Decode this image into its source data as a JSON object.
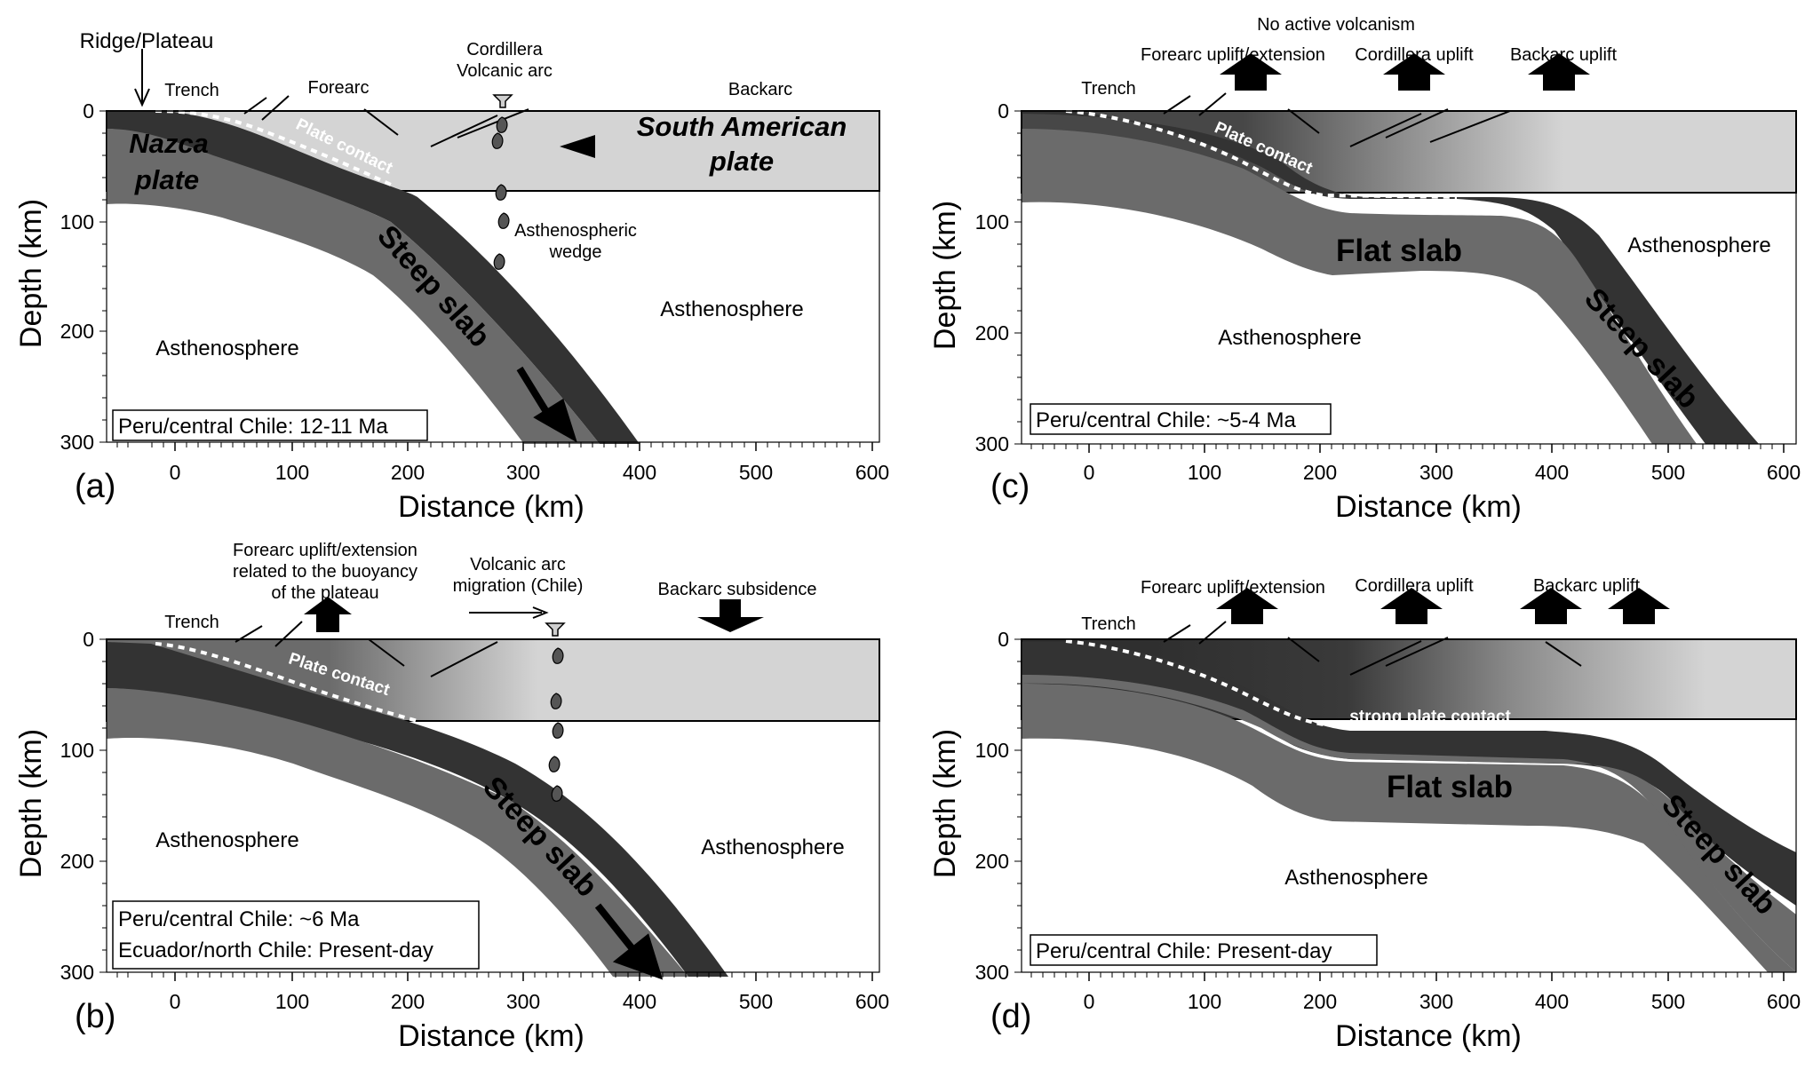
{
  "figure": {
    "axis_x_label": "Distance (km)",
    "axis_y_label": "Depth (km)",
    "x_ticks": [
      "0",
      "100",
      "200",
      "300",
      "400",
      "500",
      "600"
    ],
    "y_ticks": [
      "0",
      "100",
      "200",
      "300"
    ],
    "colors": {
      "slab_core": "#6b6b6b",
      "slab_top": "#333333",
      "continental_plate": "#d4d4d4",
      "background": "#ffffff"
    }
  },
  "panels": {
    "a": {
      "letter": "(a)",
      "caption": "Peru/central Chile: 12-11 Ma",
      "labels": {
        "ridge": "Ridge/Plateau",
        "trench": "Trench",
        "forearc": "Forearc",
        "cordillera1": "Cordillera",
        "cordillera2": "Volcanic arc",
        "backarc": "Backarc",
        "nazca1": "Nazca",
        "nazca2": "plate",
        "sa1": "South American",
        "sa2": "plate",
        "plate_contact": "Plate contact",
        "wedge1": "Asthenospheric",
        "wedge2": "wedge",
        "asth_left": "Asthenosphere",
        "asth_right": "Asthenosphere",
        "slab": "Steep slab"
      }
    },
    "b": {
      "letter": "(b)",
      "caption_lines": [
        "Peru/central Chile: ~6 Ma",
        "Ecuador/north Chile: Present-day"
      ],
      "labels": {
        "forearc1": "Forearc uplift/extension",
        "forearc2": "related to the buoyancy",
        "forearc3": "of the plateau",
        "volcanic1": "Volcanic arc",
        "volcanic2": "migration (Chile)",
        "backarc": "Backarc subsidence",
        "trench": "Trench",
        "plate_contact": "Plate contact",
        "asth_left": "Asthenosphere",
        "asth_right": "Asthenosphere",
        "slab": "Steep slab"
      }
    },
    "c": {
      "letter": "(c)",
      "caption": "Peru/central Chile: ~5-4 Ma",
      "labels": {
        "no_volcanism": "No active volcanism",
        "forearc": "Forearc uplift/extension",
        "cordillera": "Cordillera uplift",
        "backarc": "Backarc uplift",
        "trench": "Trench",
        "plate_contact": "Plate contact",
        "flat_slab": "Flat slab",
        "steep_slab": "Steep slab",
        "asth_right": "Asthenosphere",
        "asth_bottom": "Asthenosphere"
      }
    },
    "d": {
      "letter": "(d)",
      "caption": "Peru/central Chile: Present-day",
      "labels": {
        "forearc": "Forearc uplift/extension",
        "cordillera": "Cordillera uplift",
        "backarc": "Backarc uplift",
        "trench": "Trench",
        "plate_contact": "strong plate contact",
        "flat_slab": "Flat slab",
        "steep_slab": "Steep slab",
        "asth": "Asthenosphere"
      }
    }
  }
}
